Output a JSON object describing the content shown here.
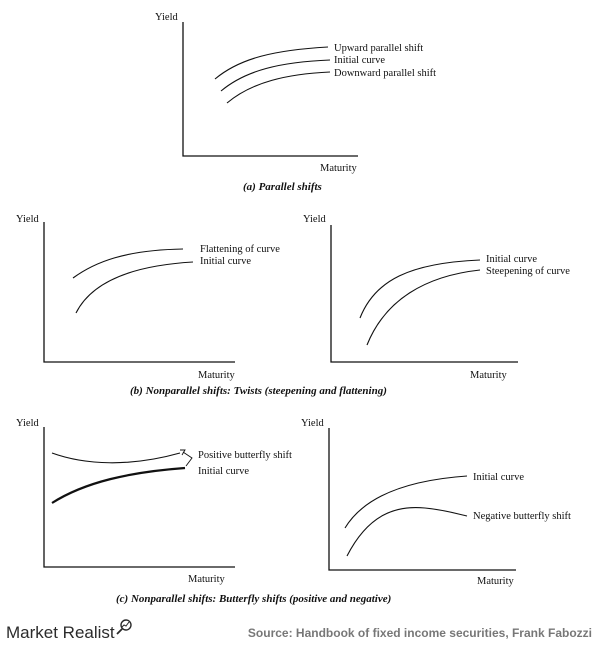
{
  "brand": {
    "name": "Market Realist"
  },
  "source": "Source: Handbook of fixed income securities, Frank Fabozzi",
  "chart_data": [
    {
      "type": "line",
      "panel": "a",
      "caption": "(a) Parallel shifts",
      "xlabel": "Maturity",
      "ylabel": "Yield",
      "series": [
        {
          "name": "Upward parallel shift"
        },
        {
          "name": "Initial curve"
        },
        {
          "name": "Downward parallel shift"
        }
      ]
    },
    {
      "type": "line",
      "panel": "b-left",
      "xlabel": "Maturity",
      "ylabel": "Yield",
      "series": [
        {
          "name": "Flattening of curve"
        },
        {
          "name": "Initial curve"
        }
      ]
    },
    {
      "type": "line",
      "panel": "b-right",
      "xlabel": "Maturity",
      "ylabel": "Yield",
      "series": [
        {
          "name": "Initial curve"
        },
        {
          "name": "Steepening of curve"
        }
      ]
    },
    {
      "type": "line",
      "panel": "b-caption",
      "caption": "(b) Nonparallel shifts: Twists (steepening and flattening)"
    },
    {
      "type": "line",
      "panel": "c-left",
      "xlabel": "Maturity",
      "ylabel": "Yield",
      "series": [
        {
          "name": "Positive butterfly shift"
        },
        {
          "name": "Initial curve"
        }
      ]
    },
    {
      "type": "line",
      "panel": "c-right",
      "xlabel": "Maturity",
      "ylabel": "Yield",
      "series": [
        {
          "name": "Initial curve"
        },
        {
          "name": "Negative butterfly shift"
        }
      ]
    },
    {
      "type": "line",
      "panel": "c-caption",
      "caption": "(c) Nonparallel shifts: Butterfly shifts (positive and negative)"
    }
  ]
}
